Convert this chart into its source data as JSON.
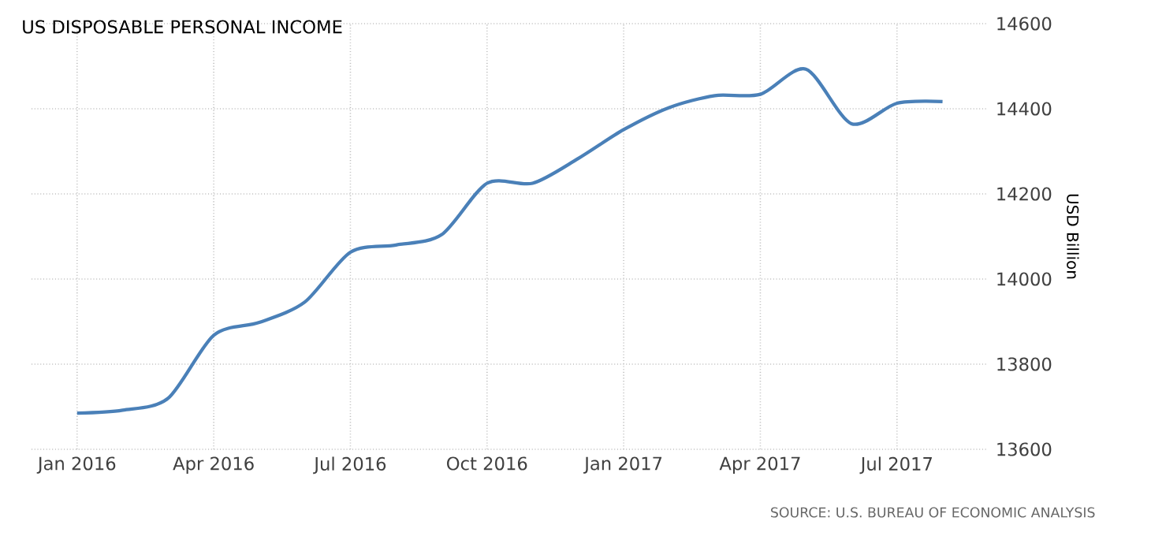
{
  "chart_data": {
    "type": "line",
    "title": "US DISPOSABLE PERSONAL INCOME",
    "ylabel": "USD Billion",
    "annotations": [
      "SOURCE: U.S. BUREAU OF ECONOMIC ANALYSIS"
    ],
    "x": [
      "2016-01",
      "2016-02",
      "2016-03",
      "2016-04",
      "2016-05",
      "2016-06",
      "2016-07",
      "2016-08",
      "2016-09",
      "2016-10",
      "2016-11",
      "2016-12",
      "2017-01",
      "2017-02",
      "2017-03",
      "2017-04",
      "2017-05",
      "2017-06",
      "2017-07",
      "2017-08"
    ],
    "series": [
      {
        "color": "#4a80b8",
        "values": [
          13685,
          13692,
          13720,
          13868,
          13898,
          13946,
          14063,
          14080,
          14104,
          14225,
          14225,
          14283,
          14351,
          14403,
          14431,
          14434,
          14493,
          14365,
          14413,
          14417
        ]
      }
    ],
    "xlim": [
      "2015-12",
      "2017-09"
    ],
    "xticks": [
      {
        "value": "2016-01",
        "label": "Jan 2016"
      },
      {
        "value": "2016-04",
        "label": "Apr 2016"
      },
      {
        "value": "2016-07",
        "label": "Jul 2016"
      },
      {
        "value": "2016-10",
        "label": "Oct 2016"
      },
      {
        "value": "2017-01",
        "label": "Jan 2017"
      },
      {
        "value": "2017-04",
        "label": "Apr 2017"
      },
      {
        "value": "2017-07",
        "label": "Jul 2017"
      }
    ],
    "ylim": [
      13600,
      14600
    ],
    "yticks": [
      13600,
      13800,
      14000,
      14200,
      14400,
      14600
    ],
    "grid": true,
    "marker": "none",
    "line_style": "solid"
  }
}
